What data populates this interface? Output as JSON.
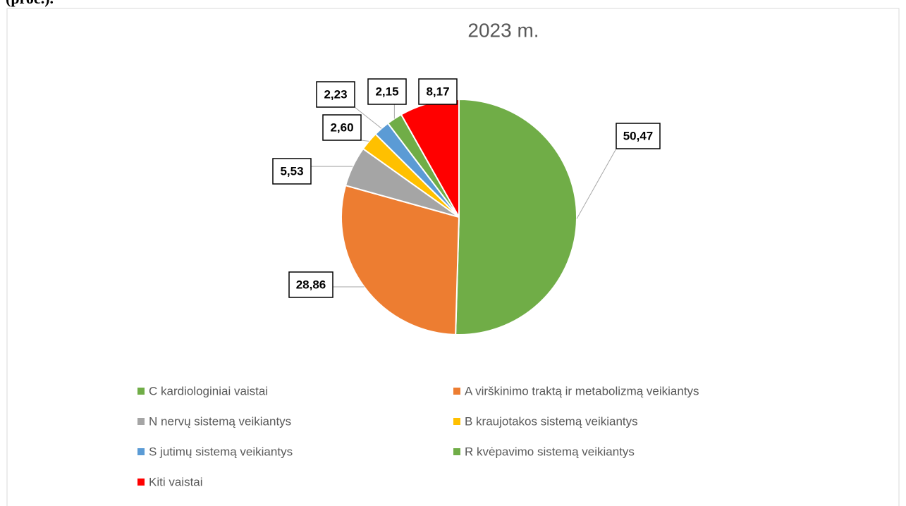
{
  "caption": "(proc.).",
  "chart_data": {
    "type": "pie",
    "title": "2023 m.",
    "categories": [
      "C kardiologiniai vaistai",
      "A virškinimo traktą ir metabolizmą veikiantys",
      "N nervų sistemą veikiantys",
      "B kraujotakos sistemą veikiantys",
      "S jutimų sistemą veikiantys",
      "R kvėpavimo sistemą veikiantys",
      "Kiti vaistai"
    ],
    "values": [
      50.47,
      28.86,
      5.53,
      2.6,
      2.23,
      2.15,
      8.17
    ],
    "value_labels": [
      "50,47",
      "28,86",
      "5,53",
      "2,60",
      "2,23",
      "2,15",
      "8,17"
    ],
    "colors": [
      "#70ad47",
      "#ed7d31",
      "#a5a5a5",
      "#ffc000",
      "#5b9bd5",
      "#70ad47",
      "#ff0000"
    ],
    "legend": "bottom"
  }
}
